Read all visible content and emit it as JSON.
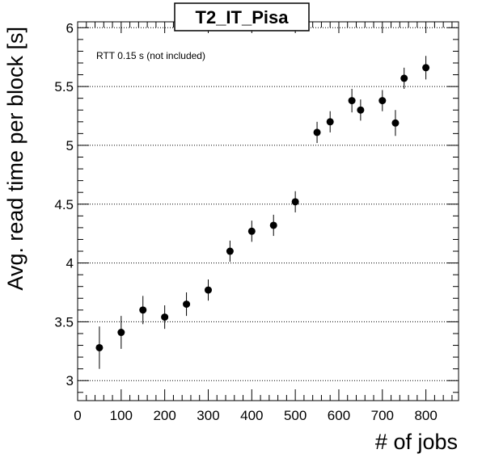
{
  "chart_data": {
    "type": "scatter",
    "title": "T2_IT_Pisa",
    "xlabel": "# of jobs",
    "ylabel": "Avg. read time per block [s]",
    "annotation": "RTT 0.15 s (not included)",
    "xlim": [
      0,
      875
    ],
    "ylim": [
      2.83,
      6.05
    ],
    "x_ticks": [
      0,
      100,
      200,
      300,
      400,
      500,
      600,
      700,
      800
    ],
    "y_ticks": [
      3,
      3.5,
      4,
      4.5,
      5,
      5.5,
      6
    ],
    "x_tick_labels": [
      "0",
      "100",
      "200",
      "300",
      "400",
      "500",
      "600",
      "700",
      "800"
    ],
    "y_tick_labels": [
      "3",
      "3.5",
      "4",
      "4.5",
      "5",
      "5.5",
      "6"
    ],
    "grid": "horizontal dotted",
    "points": [
      {
        "x": 50,
        "y": 3.28,
        "err": 0.18
      },
      {
        "x": 100,
        "y": 3.41,
        "err": 0.14
      },
      {
        "x": 150,
        "y": 3.6,
        "err": 0.12
      },
      {
        "x": 200,
        "y": 3.54,
        "err": 0.1
      },
      {
        "x": 250,
        "y": 3.65,
        "err": 0.1
      },
      {
        "x": 300,
        "y": 3.77,
        "err": 0.09
      },
      {
        "x": 350,
        "y": 4.1,
        "err": 0.09
      },
      {
        "x": 400,
        "y": 4.27,
        "err": 0.09
      },
      {
        "x": 450,
        "y": 4.32,
        "err": 0.09
      },
      {
        "x": 500,
        "y": 4.52,
        "err": 0.09
      },
      {
        "x": 550,
        "y": 5.11,
        "err": 0.09
      },
      {
        "x": 580,
        "y": 5.2,
        "err": 0.09
      },
      {
        "x": 630,
        "y": 5.38,
        "err": 0.1
      },
      {
        "x": 650,
        "y": 5.3,
        "err": 0.09
      },
      {
        "x": 700,
        "y": 5.38,
        "err": 0.09
      },
      {
        "x": 730,
        "y": 5.19,
        "err": 0.11
      },
      {
        "x": 750,
        "y": 5.57,
        "err": 0.09
      },
      {
        "x": 800,
        "y": 5.66,
        "err": 0.1
      }
    ]
  }
}
